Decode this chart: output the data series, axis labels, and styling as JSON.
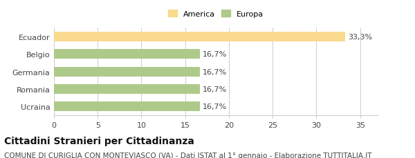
{
  "categories": [
    "Ecuador",
    "Belgio",
    "Germania",
    "Romania",
    "Ucraina"
  ],
  "values": [
    33.3,
    16.7,
    16.7,
    16.7,
    16.7
  ],
  "bar_colors": [
    "#FADA8E",
    "#AECA8A",
    "#AECA8A",
    "#AECA8A",
    "#AECA8A"
  ],
  "bar_labels": [
    "33,3%",
    "16,7%",
    "16,7%",
    "16,7%",
    "16,7%"
  ],
  "legend_labels": [
    "America",
    "Europa"
  ],
  "legend_colors": [
    "#FADA8E",
    "#AECA8A"
  ],
  "xlim": [
    0,
    37
  ],
  "xticks": [
    0,
    5,
    10,
    15,
    20,
    25,
    30,
    35
  ],
  "title": "Cittadini Stranieri per Cittadinanza",
  "subtitle": "COMUNE DI CURIGLIA CON MONTEVIASCO (VA) - Dati ISTAT al 1° gennaio - Elaborazione TUTTITALIA.IT",
  "title_fontsize": 10,
  "subtitle_fontsize": 7.5,
  "label_fontsize": 8,
  "tick_fontsize": 8,
  "bar_height": 0.55,
  "background_color": "#FFFFFF",
  "grid_color": "#CCCCCC",
  "text_color": "#444444"
}
